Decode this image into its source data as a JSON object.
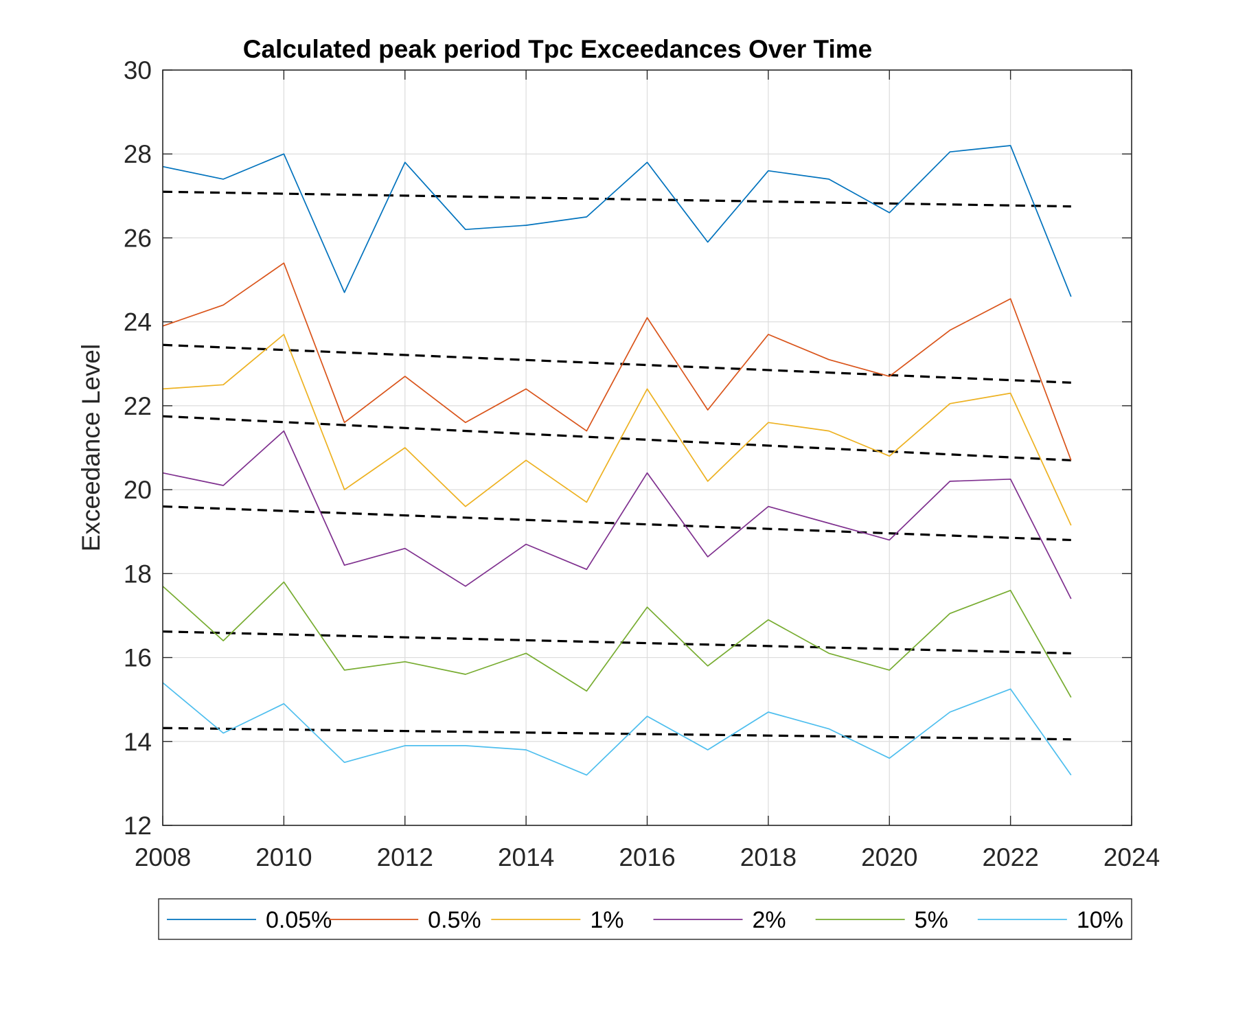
{
  "chart_data": {
    "type": "line",
    "title": "Calculated peak period Tpc Exceedances Over Time",
    "xlabel": "",
    "ylabel": "Exceedance Level",
    "xlim": [
      2008,
      2024
    ],
    "ylim": [
      12,
      30
    ],
    "xticks": [
      2008,
      2010,
      2012,
      2014,
      2016,
      2018,
      2020,
      2022,
      2024
    ],
    "yticks": [
      12,
      14,
      16,
      18,
      20,
      22,
      24,
      26,
      28,
      30
    ],
    "grid": true,
    "legend_position": "bottom-outside",
    "x": [
      2008,
      2009,
      2010,
      2011,
      2012,
      2013,
      2014,
      2015,
      2016,
      2017,
      2018,
      2019,
      2020,
      2021,
      2022,
      2023
    ],
    "series": [
      {
        "name": "0.05%",
        "color": "#0072BD",
        "values": [
          27.7,
          27.4,
          28.0,
          24.7,
          27.8,
          26.2,
          26.3,
          26.5,
          27.8,
          25.9,
          27.6,
          27.4,
          26.6,
          28.05,
          28.2,
          24.6
        ]
      },
      {
        "name": "0.5%",
        "color": "#D95319",
        "values": [
          23.9,
          24.4,
          25.4,
          21.6,
          22.7,
          21.6,
          22.4,
          21.4,
          24.1,
          21.9,
          23.7,
          23.1,
          22.7,
          23.8,
          24.55,
          20.7
        ]
      },
      {
        "name": "1%",
        "color": "#EDB120",
        "values": [
          22.4,
          22.5,
          23.7,
          20.0,
          21.0,
          19.6,
          20.7,
          19.7,
          22.4,
          20.2,
          21.6,
          21.4,
          20.8,
          22.05,
          22.3,
          19.15
        ]
      },
      {
        "name": "2%",
        "color": "#7E2F8E",
        "values": [
          20.4,
          20.1,
          21.4,
          18.2,
          18.6,
          17.7,
          18.7,
          18.1,
          20.4,
          18.4,
          19.6,
          19.2,
          18.8,
          20.2,
          20.25,
          17.4
        ]
      },
      {
        "name": "5%",
        "color": "#77AC30",
        "values": [
          17.7,
          16.4,
          17.8,
          15.7,
          15.9,
          15.6,
          16.1,
          15.2,
          17.2,
          15.8,
          16.9,
          16.1,
          15.7,
          17.05,
          17.6,
          15.05
        ]
      },
      {
        "name": "10%",
        "color": "#4DBEEE",
        "values": [
          15.4,
          14.2,
          14.9,
          13.5,
          13.9,
          13.9,
          13.8,
          13.2,
          14.6,
          13.8,
          14.7,
          14.3,
          13.6,
          14.7,
          15.25,
          13.2
        ]
      }
    ],
    "trend_lines": [
      {
        "x": [
          2008,
          2023
        ],
        "y": [
          27.1,
          26.75
        ]
      },
      {
        "x": [
          2008,
          2023
        ],
        "y": [
          23.45,
          22.55
        ]
      },
      {
        "x": [
          2008,
          2023
        ],
        "y": [
          21.75,
          20.7
        ]
      },
      {
        "x": [
          2008,
          2023
        ],
        "y": [
          19.6,
          18.8
        ]
      },
      {
        "x": [
          2008,
          2023
        ],
        "y": [
          16.62,
          16.1
        ]
      },
      {
        "x": [
          2008,
          2023
        ],
        "y": [
          14.32,
          14.05
        ]
      }
    ],
    "trend_color": "#000000"
  }
}
